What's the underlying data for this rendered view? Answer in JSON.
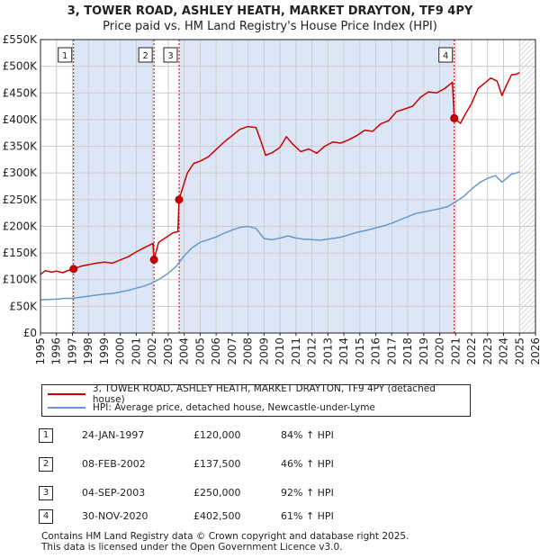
{
  "header": {
    "title": "3, TOWER ROAD, ASHLEY HEATH, MARKET DRAYTON, TF9 4PY",
    "subtitle": "Price paid vs. HM Land Registry's House Price Index (HPI)"
  },
  "colors": {
    "property": "#cc0000",
    "hpi": "#6699cc",
    "shade": "#dde6f7",
    "grid": "#cccccc"
  },
  "chart_data": {
    "type": "line",
    "title": "Price paid vs. HM Land Registry's House Price Index (HPI)",
    "x_range": [
      1995,
      2026
    ],
    "ylim": [
      0,
      550000
    ],
    "y_ticks": [
      {
        "value": 0,
        "label": "£0"
      },
      {
        "value": 50000,
        "label": "£50K"
      },
      {
        "value": 100000,
        "label": "£100K"
      },
      {
        "value": 150000,
        "label": "£150K"
      },
      {
        "value": 200000,
        "label": "£200K"
      },
      {
        "value": 250000,
        "label": "£250K"
      },
      {
        "value": 300000,
        "label": "£300K"
      },
      {
        "value": 350000,
        "label": "£350K"
      },
      {
        "value": 400000,
        "label": "£400K"
      },
      {
        "value": 450000,
        "label": "£450K"
      },
      {
        "value": 500000,
        "label": "£500K"
      },
      {
        "value": 550000,
        "label": "£550K"
      }
    ],
    "x_ticks": [
      "1995",
      "1996",
      "1997",
      "1998",
      "1999",
      "2000",
      "2001",
      "2002",
      "2003",
      "2004",
      "2005",
      "2006",
      "2007",
      "2008",
      "2009",
      "2010",
      "2011",
      "2012",
      "2013",
      "2014",
      "2015",
      "2016",
      "2017",
      "2018",
      "2019",
      "2020",
      "2021",
      "2022",
      "2023",
      "2024",
      "2025",
      "2026"
    ],
    "series": [
      {
        "name": "3, TOWER ROAD, ASHLEY HEATH, MARKET DRAYTON, TF9 4PY (detached house)",
        "color": "#cc0000",
        "points": [
          [
            1995.0,
            110000
          ],
          [
            1995.3,
            117000
          ],
          [
            1995.7,
            114000
          ],
          [
            1996.0,
            116000
          ],
          [
            1996.4,
            113000
          ],
          [
            1996.8,
            118000
          ],
          [
            1997.07,
            120000
          ],
          [
            1997.5,
            125000
          ],
          [
            1998.0,
            128000
          ],
          [
            1998.5,
            131000
          ],
          [
            1999.0,
            133000
          ],
          [
            1999.5,
            131000
          ],
          [
            2000.0,
            137000
          ],
          [
            2000.5,
            143000
          ],
          [
            2001.0,
            152000
          ],
          [
            2001.5,
            160000
          ],
          [
            2002.05,
            168000
          ],
          [
            2002.11,
            137500
          ],
          [
            2002.4,
            170000
          ],
          [
            2002.8,
            178000
          ],
          [
            2003.3,
            188000
          ],
          [
            2003.6,
            190000
          ],
          [
            2003.68,
            250000
          ],
          [
            2003.9,
            272000
          ],
          [
            2004.2,
            300000
          ],
          [
            2004.6,
            318000
          ],
          [
            2005.0,
            322000
          ],
          [
            2005.5,
            330000
          ],
          [
            2006.0,
            344000
          ],
          [
            2006.5,
            358000
          ],
          [
            2007.0,
            370000
          ],
          [
            2007.5,
            382000
          ],
          [
            2008.0,
            387000
          ],
          [
            2008.5,
            385000
          ],
          [
            2008.8,
            360000
          ],
          [
            2009.1,
            333000
          ],
          [
            2009.5,
            338000
          ],
          [
            2010.0,
            348000
          ],
          [
            2010.4,
            368000
          ],
          [
            2010.8,
            354000
          ],
          [
            2011.3,
            340000
          ],
          [
            2011.8,
            345000
          ],
          [
            2012.3,
            337000
          ],
          [
            2012.8,
            350000
          ],
          [
            2013.3,
            358000
          ],
          [
            2013.8,
            356000
          ],
          [
            2014.3,
            362000
          ],
          [
            2014.8,
            370000
          ],
          [
            2015.3,
            380000
          ],
          [
            2015.8,
            378000
          ],
          [
            2016.3,
            392000
          ],
          [
            2016.8,
            398000
          ],
          [
            2017.3,
            415000
          ],
          [
            2017.8,
            420000
          ],
          [
            2018.3,
            425000
          ],
          [
            2018.8,
            442000
          ],
          [
            2019.3,
            452000
          ],
          [
            2019.8,
            450000
          ],
          [
            2020.3,
            458000
          ],
          [
            2020.8,
            470000
          ],
          [
            2020.91,
            402500
          ],
          [
            2021.3,
            393000
          ],
          [
            2021.6,
            410000
          ],
          [
            2022.0,
            430000
          ],
          [
            2022.4,
            458000
          ],
          [
            2022.8,
            468000
          ],
          [
            2023.2,
            478000
          ],
          [
            2023.6,
            472000
          ],
          [
            2023.9,
            445000
          ],
          [
            2024.2,
            466000
          ],
          [
            2024.5,
            484000
          ],
          [
            2024.8,
            485000
          ],
          [
            2025.0,
            488000
          ]
        ]
      },
      {
        "name": "HPI: Average price, detached house, Newcastle-under-Lyme",
        "color": "#6699cc",
        "points": [
          [
            1995.0,
            62000
          ],
          [
            1995.5,
            63000
          ],
          [
            1996.0,
            63500
          ],
          [
            1996.5,
            65000
          ],
          [
            1997.0,
            65000
          ],
          [
            1997.5,
            67000
          ],
          [
            1998.0,
            69000
          ],
          [
            1998.5,
            71000
          ],
          [
            1999.0,
            73000
          ],
          [
            1999.5,
            74000
          ],
          [
            2000.0,
            77000
          ],
          [
            2000.5,
            80000
          ],
          [
            2001.0,
            84000
          ],
          [
            2001.5,
            88000
          ],
          [
            2002.0,
            94000
          ],
          [
            2002.5,
            102000
          ],
          [
            2003.0,
            112000
          ],
          [
            2003.5,
            125000
          ],
          [
            2004.0,
            145000
          ],
          [
            2004.5,
            160000
          ],
          [
            2005.0,
            170000
          ],
          [
            2005.5,
            175000
          ],
          [
            2006.0,
            180000
          ],
          [
            2006.5,
            187000
          ],
          [
            2007.0,
            193000
          ],
          [
            2007.5,
            198000
          ],
          [
            2008.0,
            200000
          ],
          [
            2008.5,
            196000
          ],
          [
            2009.0,
            177000
          ],
          [
            2009.5,
            175000
          ],
          [
            2010.0,
            178000
          ],
          [
            2010.5,
            182000
          ],
          [
            2011.0,
            178000
          ],
          [
            2011.5,
            176000
          ],
          [
            2012.0,
            175000
          ],
          [
            2012.5,
            174000
          ],
          [
            2013.0,
            176000
          ],
          [
            2013.5,
            178000
          ],
          [
            2014.0,
            181000
          ],
          [
            2014.5,
            186000
          ],
          [
            2015.0,
            190000
          ],
          [
            2015.5,
            193000
          ],
          [
            2016.0,
            197000
          ],
          [
            2016.5,
            201000
          ],
          [
            2017.0,
            206000
          ],
          [
            2017.5,
            212000
          ],
          [
            2018.0,
            218000
          ],
          [
            2018.5,
            224000
          ],
          [
            2019.0,
            227000
          ],
          [
            2019.5,
            230000
          ],
          [
            2020.0,
            233000
          ],
          [
            2020.5,
            237000
          ],
          [
            2021.0,
            246000
          ],
          [
            2021.5,
            256000
          ],
          [
            2022.0,
            270000
          ],
          [
            2022.5,
            282000
          ],
          [
            2023.0,
            290000
          ],
          [
            2023.5,
            295000
          ],
          [
            2023.9,
            283000
          ],
          [
            2024.2,
            290000
          ],
          [
            2024.5,
            298000
          ],
          [
            2024.8,
            300000
          ],
          [
            2025.0,
            302000
          ]
        ]
      }
    ],
    "sales": [
      {
        "label": "1",
        "year": 1997.07,
        "price": 120000
      },
      {
        "label": "2",
        "year": 2002.11,
        "price": 137500
      },
      {
        "label": "3",
        "year": 2003.68,
        "price": 250000
      },
      {
        "label": "4",
        "year": 2020.91,
        "price": 402500
      }
    ],
    "shaded_spans": [
      [
        1997.07,
        2002.11
      ],
      [
        2003.68,
        2020.91
      ]
    ],
    "hatched_span": [
      2025.0,
      2026.0
    ]
  },
  "legend": {
    "property_label": "3, TOWER ROAD, ASHLEY HEATH, MARKET DRAYTON, TF9 4PY (detached house)",
    "hpi_label": "HPI: Average price, detached house, Newcastle-under-Lyme"
  },
  "sales_table": [
    {
      "num": "1",
      "date": "24-JAN-1997",
      "price": "£120,000",
      "hpi": "84% ↑ HPI"
    },
    {
      "num": "2",
      "date": "08-FEB-2002",
      "price": "£137,500",
      "hpi": "46% ↑ HPI"
    },
    {
      "num": "3",
      "date": "04-SEP-2003",
      "price": "£250,000",
      "hpi": "92% ↑ HPI"
    },
    {
      "num": "4",
      "date": "30-NOV-2020",
      "price": "£402,500",
      "hpi": "61% ↑ HPI"
    }
  ],
  "footer": {
    "line1": "Contains HM Land Registry data © Crown copyright and database right 2025.",
    "line2": "This data is licensed under the Open Government Licence v3.0."
  }
}
